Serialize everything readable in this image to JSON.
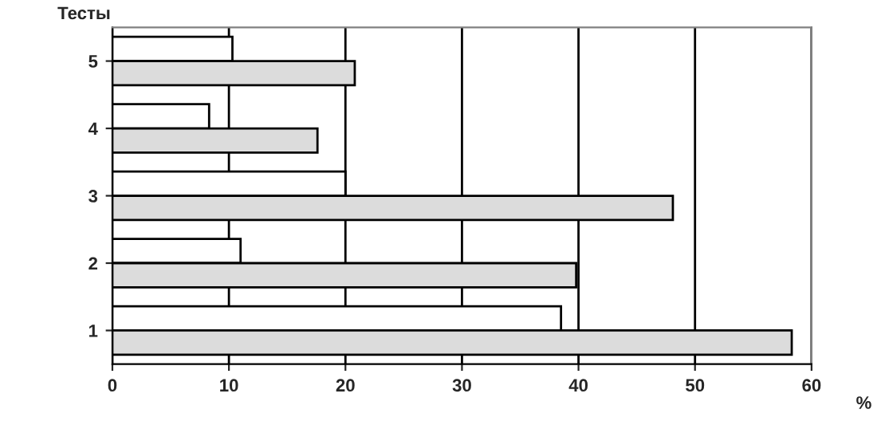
{
  "chart_data": {
    "type": "bar",
    "orientation": "horizontal",
    "xlabel": "%",
    "ylabel": "Тесты",
    "categories": [
      "5",
      "4",
      "3",
      "2",
      "1"
    ],
    "series": [
      {
        "color": "#ffffff",
        "values": [
          10.3,
          8.3,
          20.0,
          11.0,
          38.5
        ]
      },
      {
        "color": "#dcdcdc",
        "values": [
          20.8,
          17.6,
          48.1,
          39.8,
          58.3
        ]
      }
    ],
    "xlim": [
      0,
      60
    ],
    "xticks": [
      0,
      10,
      20,
      30,
      40,
      50,
      60
    ],
    "grid": "x",
    "legend": false
  }
}
